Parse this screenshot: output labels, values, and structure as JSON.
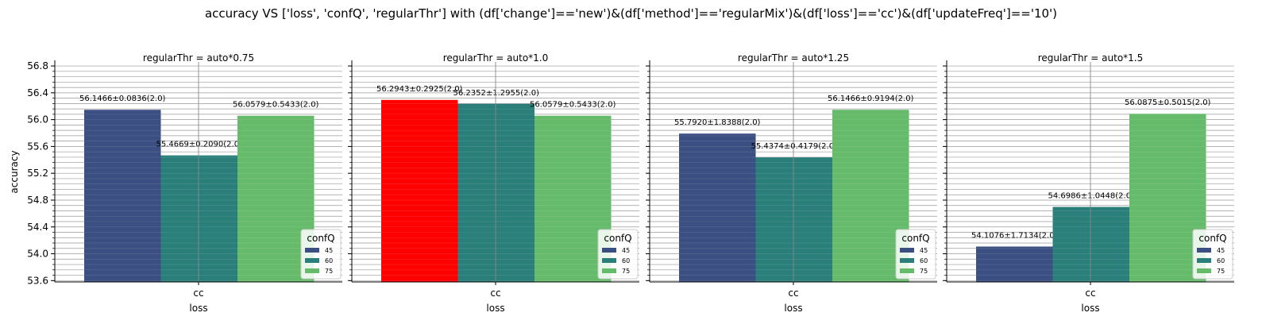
{
  "suptitle": "accuracy VS ['loss', 'confQ', 'regularThr'] with (df['change']=='new')&(df['method']=='regularMix')&(df['loss']=='cc')&(df['updateFreq']=='10')",
  "colors": {
    "confQ_45": "#3b4f82",
    "confQ_60": "#2a7f7a",
    "confQ_75": "#66bb6a",
    "highlight": "#ff0000"
  },
  "chart_data": {
    "type": "bar",
    "ylabel": "accuracy",
    "xlabel": "loss",
    "ylim": [
      53.58,
      56.86
    ],
    "yticks": [
      "53.6",
      "54.0",
      "54.4",
      "54.8",
      "55.2",
      "55.6",
      "56.0",
      "56.4",
      "56.8"
    ],
    "categories": [
      "cc"
    ],
    "legend": {
      "title": "confQ",
      "entries": [
        "45",
        "60",
        "75"
      ],
      "placement": "lower-right"
    },
    "grid": true,
    "panels": [
      {
        "title": "regularThr = auto*0.75",
        "bars": [
          {
            "confQ": "45",
            "value": 56.1466,
            "label": "56.1466±0.0836(2.0)",
            "highlight": false
          },
          {
            "confQ": "60",
            "value": 55.4669,
            "label": "55.4669±0.2090(2.0)",
            "highlight": false
          },
          {
            "confQ": "75",
            "value": 56.0579,
            "label": "56.0579±0.5433(2.0)",
            "highlight": false
          }
        ]
      },
      {
        "title": "regularThr = auto*1.0",
        "bars": [
          {
            "confQ": "45",
            "value": 56.2943,
            "label": "56.2943±0.2925(2.0)",
            "highlight": true
          },
          {
            "confQ": "60",
            "value": 56.2352,
            "label": "56.2352±1.2955(2.0)",
            "highlight": false
          },
          {
            "confQ": "75",
            "value": 56.0579,
            "label": "56.0579±0.5433(2.0)",
            "highlight": false
          }
        ]
      },
      {
        "title": "regularThr = auto*1.25",
        "bars": [
          {
            "confQ": "45",
            "value": 55.792,
            "label": "55.7920±1.8388(2.0)",
            "highlight": false
          },
          {
            "confQ": "60",
            "value": 55.4374,
            "label": "55.4374±0.4179(2.0)",
            "highlight": false
          },
          {
            "confQ": "75",
            "value": 56.1466,
            "label": "56.1466±0.9194(2.0)",
            "highlight": false
          }
        ]
      },
      {
        "title": "regularThr = auto*1.5",
        "bars": [
          {
            "confQ": "45",
            "value": 54.1076,
            "label": "54.1076±1.7134(2.0)",
            "highlight": false
          },
          {
            "confQ": "60",
            "value": 54.6986,
            "label": "54.6986±1.0448(2.0)",
            "highlight": false
          },
          {
            "confQ": "75",
            "value": 56.0875,
            "label": "56.0875±0.5015(2.0)",
            "highlight": false
          }
        ]
      }
    ]
  }
}
